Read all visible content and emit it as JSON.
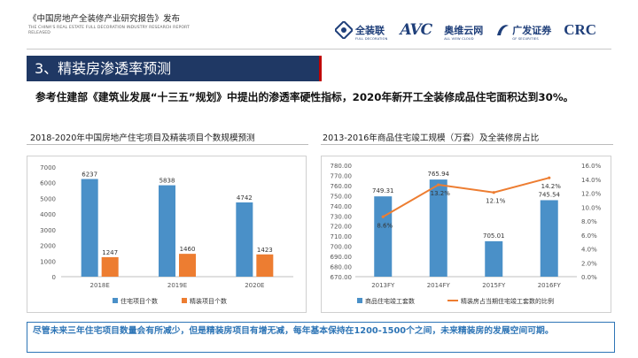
{
  "header": {
    "title": "《中国房地产全装修产业研究报告》发布",
    "subtitle_en": "THE CHINA'S REAL ESTATE FULL DECORATION INDUSTRY RESEARCH REPORT RELEASED",
    "logos": [
      {
        "name": "全装联",
        "sub": "FULL DECORATION",
        "icon": "quanzhuanglian-logo",
        "color": "#1f3f7a"
      },
      {
        "name": "AVC",
        "sub": "",
        "icon": "avc-logo",
        "color": "#1f3f7a"
      },
      {
        "name": "奥维云网",
        "sub": "ALL VIEW CLOUD",
        "icon": "allviewcloud-logo",
        "color": "#1f3f7a"
      },
      {
        "name": "广发证券",
        "sub": "GF SECURITIES",
        "icon": "gf-securities-logo",
        "color": "#1f3f7a"
      },
      {
        "name": "CRC",
        "sub": "",
        "icon": "crc-logo",
        "color": "#1f3f7a"
      }
    ]
  },
  "section": {
    "title": "3、精装房渗透率预测",
    "bar_color": "#1f3864",
    "accent_color": "#c00000"
  },
  "statement": "参考住建部《建筑业发展“十三五”规划》中提出的渗透率硬性指标，2020年新开工全装修成品住宅面积达到30%。",
  "footer": "尽管未来三年住宅项目数量会有所减少，但是精装房项目有增无减，每年基本保持在1200-1500个之间，未来精装房的发展空间可期。",
  "chart_data": [
    {
      "type": "bar",
      "title": "2018-2020年中国房地产住宅项目及精装项目个数规模预测",
      "categories": [
        "2018E",
        "2019E",
        "2020E"
      ],
      "series": [
        {
          "name": "住宅项目个数",
          "values": [
            6237,
            5838,
            4742
          ],
          "color": "#4a90c8"
        },
        {
          "name": "精装项目个数",
          "values": [
            1247,
            1460,
            1423
          ],
          "color": "#ed7d31"
        }
      ],
      "ylim": [
        0,
        7000
      ],
      "yticks": [
        "0",
        "1000",
        "2000",
        "3000",
        "4000",
        "5000",
        "6000",
        "7000"
      ],
      "grid": false,
      "legend": "bottom"
    },
    {
      "type": "bar+line",
      "title": "2013-2016年商品住宅竣工规模（万套）及全装修房占比",
      "categories": [
        "2013FY",
        "2014FY",
        "2015FY",
        "2016FY"
      ],
      "series": [
        {
          "name": "商品住宅竣工套数",
          "type": "bar",
          "axis": "left",
          "values": [
            749.31,
            765.94,
            705.01,
            745.54
          ],
          "labels": [
            "749.31",
            "765.94",
            "705.01",
            "745.54"
          ],
          "color": "#4a90c8"
        },
        {
          "name": "精装房占当期住宅竣工套数的比例",
          "type": "line",
          "axis": "right",
          "values": [
            8.6,
            13.2,
            12.1,
            14.2
          ],
          "labels": [
            "8.6%",
            "13.2%",
            "12.1%",
            "14.2%"
          ],
          "color": "#ed7d31"
        }
      ],
      "ylim": [
        670,
        780
      ],
      "yticks": [
        "670.00",
        "680.00",
        "690.00",
        "700.00",
        "710.00",
        "720.00",
        "730.00",
        "740.00",
        "750.00",
        "760.00",
        "770.00",
        "780.00"
      ],
      "y2lim": [
        0,
        16
      ],
      "y2ticks": [
        "0.0%",
        "2.0%",
        "4.0%",
        "6.0%",
        "8.0%",
        "10.0%",
        "12.0%",
        "14.0%",
        "16.0%"
      ],
      "grid": false,
      "legend": "bottom"
    }
  ]
}
